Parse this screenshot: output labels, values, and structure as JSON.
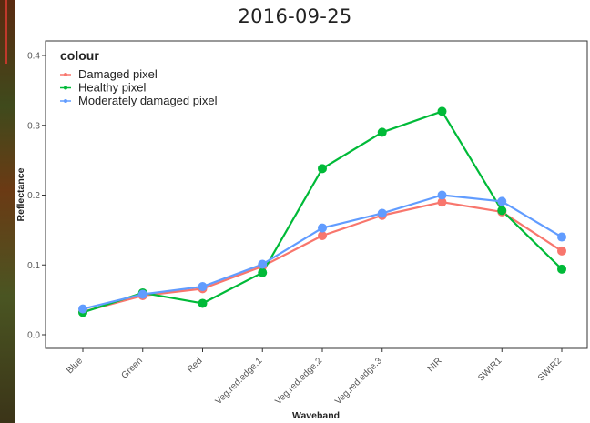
{
  "chart_data": {
    "type": "line",
    "title": "2016-09-25",
    "xlabel": "Waveband",
    "ylabel": "Reflectance",
    "categories": [
      "Blue",
      "Green",
      "Red",
      "Veg.red.edge.1",
      "Veg.red.edge.2",
      "Veg.red.edge.3",
      "NIR",
      "SWIR1",
      "SWIR2"
    ],
    "ylim": [
      0,
      0.4
    ],
    "yticks": [
      "0.0",
      "0.1",
      "0.2",
      "0.3",
      "0.4"
    ],
    "legend": {
      "title": "colour",
      "placement": "top-left"
    },
    "grid": false,
    "series": [
      {
        "name": "Damaged pixel",
        "color": "#F8766D",
        "values": [
          0.033,
          0.056,
          0.066,
          0.098,
          0.142,
          0.171,
          0.19,
          0.176,
          0.12
        ]
      },
      {
        "name": "Healthy pixel",
        "color": "#00BA38",
        "values": [
          0.032,
          0.06,
          0.045,
          0.089,
          0.238,
          0.29,
          0.32,
          0.178,
          0.094
        ]
      },
      {
        "name": "Moderately damaged pixel",
        "color": "#619CFF",
        "values": [
          0.037,
          0.058,
          0.069,
          0.101,
          0.153,
          0.174,
          0.2,
          0.191,
          0.14
        ]
      }
    ]
  }
}
